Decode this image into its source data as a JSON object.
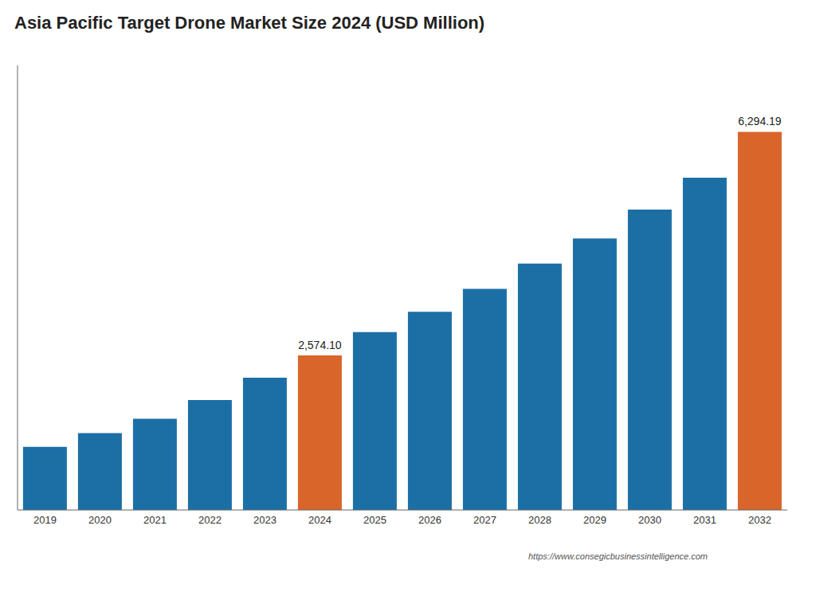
{
  "chart_data": {
    "type": "bar",
    "title": "Asia Pacific Target Drone Market Size 2024 (USD Million)",
    "categories": [
      "2019",
      "2020",
      "2021",
      "2022",
      "2023",
      "2024",
      "2025",
      "2026",
      "2027",
      "2028",
      "2029",
      "2030",
      "2031",
      "2032"
    ],
    "values": [
      1050,
      1280,
      1520,
      1830,
      2200,
      2574.1,
      2960,
      3300,
      3680,
      4100,
      4520,
      5000,
      5530,
      6294.19
    ],
    "value_labels": [
      null,
      null,
      null,
      null,
      null,
      "2,574.10",
      null,
      null,
      null,
      null,
      null,
      null,
      null,
      "6,294.19"
    ],
    "data_labels": true,
    "colors": [
      "#1c6fa5",
      "#1c6fa5",
      "#1c6fa5",
      "#1c6fa5",
      "#1c6fa5",
      "#d9652a",
      "#1c6fa5",
      "#1c6fa5",
      "#1c6fa5",
      "#1c6fa5",
      "#1c6fa5",
      "#1c6fa5",
      "#1c6fa5",
      "#d9652a"
    ],
    "ylim": [
      0,
      7400
    ],
    "tick_labels": "x",
    "grid": false,
    "annotations": [
      "https://www.consegicbusinessintelligence.com"
    ]
  }
}
